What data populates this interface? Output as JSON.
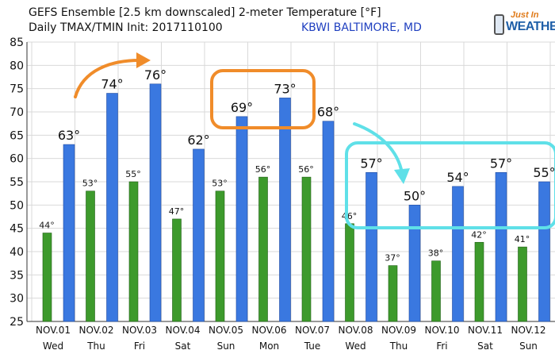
{
  "header": {
    "line1": "GEFS Ensemble [2.5 km downscaled] 2-meter Temperature [°F]",
    "line2": "Daily TMAX/TMIN Init: 2017110100",
    "station": "KBWI BALTIMORE, MD"
  },
  "logo": {
    "line1": "Just In",
    "line2": "WEATHER"
  },
  "colors": {
    "tmax": "#3a78e0",
    "tmin": "#3d9a2c",
    "highlight_orange": "#f08c2a",
    "highlight_cyan": "#5fe0e8",
    "grid": "#d9d9d9"
  },
  "chart_data": {
    "type": "bar",
    "ylim": [
      25,
      85
    ],
    "yticks": [
      25,
      30,
      35,
      40,
      45,
      50,
      55,
      60,
      65,
      70,
      75,
      80,
      85
    ],
    "grid": true,
    "degree_symbol": "°",
    "categories": [
      "NOV.01",
      "NOV.02",
      "NOV.03",
      "NOV.04",
      "NOV.05",
      "NOV.06",
      "NOV.07",
      "NOV.08",
      "NOV.09",
      "NOV.10",
      "NOV.11",
      "NOV.12"
    ],
    "weekdays": [
      "Wed",
      "Thu",
      "Fri",
      "Sat",
      "Sun",
      "Mon",
      "Tue",
      "Wed",
      "Thu",
      "Fri",
      "Sat",
      "Sun"
    ],
    "series": [
      {
        "name": "",
        "key": "tmin",
        "values": [
          44,
          53,
          55,
          47,
          53,
          56,
          56,
          46,
          37,
          38,
          42,
          41
        ]
      },
      {
        "name": "",
        "key": "tmax",
        "values": [
          63,
          74,
          76,
          62,
          69,
          73,
          68,
          57,
          50,
          54,
          57,
          55
        ]
      }
    ]
  }
}
